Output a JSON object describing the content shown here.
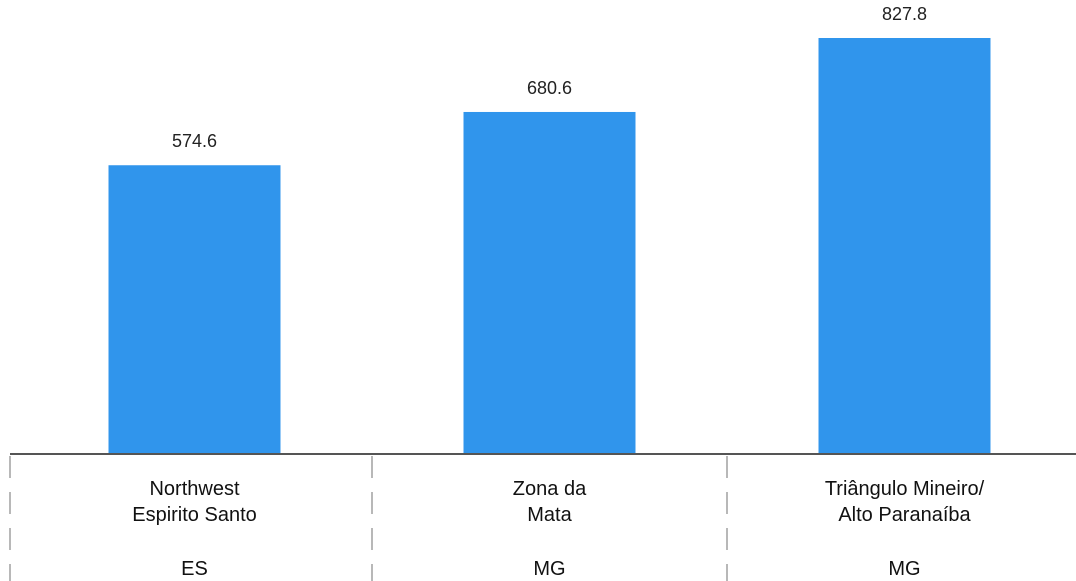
{
  "chart_data": {
    "type": "bar",
    "categories": [
      [
        "Northwest",
        "Espirito Santo"
      ],
      [
        "Zona da",
        "Mata"
      ],
      [
        "Triângulo Mineiro/",
        "Alto Paranaíba"
      ]
    ],
    "groups": [
      "ES",
      "MG",
      "MG"
    ],
    "values": [
      574.6,
      680.6,
      827.8
    ],
    "data_labels": [
      "574.6",
      "680.6",
      "827.8"
    ],
    "ylim": [
      0,
      870
    ],
    "grid": false,
    "legend": "none",
    "colors": {
      "bar": "#3095EC",
      "axis": "#555555",
      "separator": "#888888"
    }
  }
}
